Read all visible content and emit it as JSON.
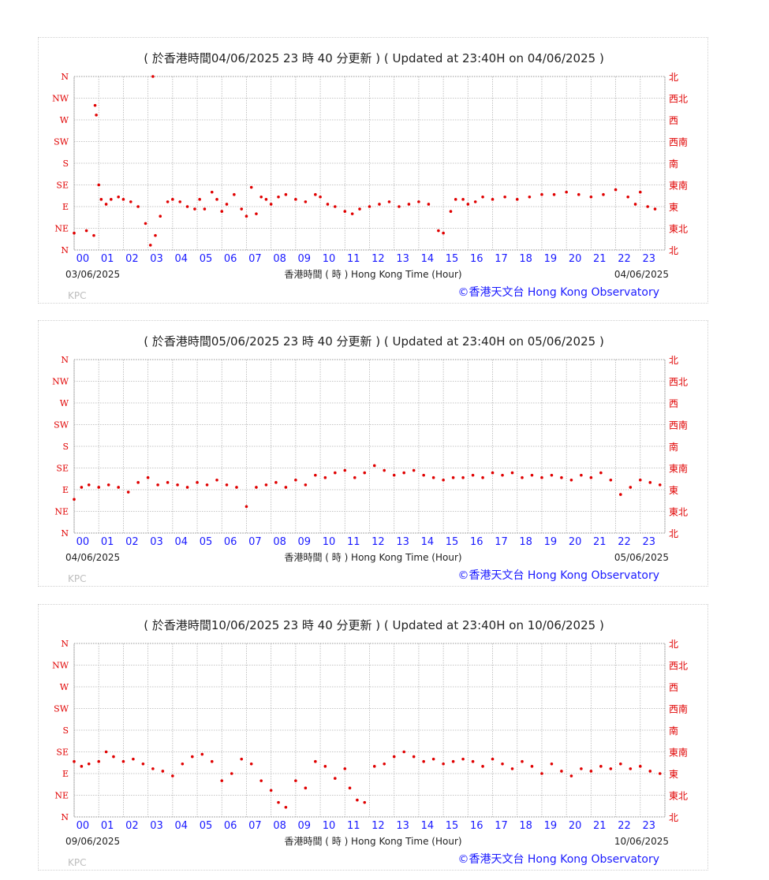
{
  "colors": {
    "points": "#e00000",
    "left_labels": "#e00000",
    "right_labels": "#e00000",
    "hour_labels": "#1a1aff",
    "copyright": "#1a1aff",
    "grid": "#b3b3b3"
  },
  "common": {
    "y_labels_en": [
      "N",
      "NW",
      "W",
      "SW",
      "S",
      "SE",
      "E",
      "NE",
      "N"
    ],
    "y_labels_zh": [
      "北",
      "西北",
      "西",
      "西南",
      "南",
      "東南",
      "東",
      "東北",
      "北"
    ],
    "hour_labels": [
      "00",
      "01",
      "02",
      "03",
      "04",
      "05",
      "06",
      "07",
      "08",
      "09",
      "10",
      "11",
      "12",
      "13",
      "14",
      "15",
      "16",
      "17",
      "18",
      "19",
      "20",
      "21",
      "22",
      "23"
    ],
    "x_title": "香港時間 ( 時 ) Hong Kong Time (Hour)",
    "copyright": "©香港天文台 Hong Kong Observatory",
    "station": "KPC"
  },
  "panels": [
    {
      "title": "( 於香港時間04/06/2025 23 時 40 分更新 ) ( Updated at 23:40H on 04/06/2025 )",
      "start_date": "03/06/2025",
      "end_date": "04/06/2025"
    },
    {
      "title": "( 於香港時間05/06/2025 23 時 40 分更新 ) ( Updated at 23:40H on 05/06/2025 )",
      "start_date": "04/06/2025",
      "end_date": "05/06/2025"
    },
    {
      "title": "( 於香港時間10/06/2025 23 時 40 分更新 ) ( Updated at 23:40H on 10/06/2025 )",
      "start_date": "09/06/2025",
      "end_date": "10/06/2025"
    }
  ],
  "chart_data": [
    {
      "type": "scatter",
      "title": "( 於香港時間04/06/2025 23 時 40 分更新 ) ( Updated at 23:40H on 04/06/2025 )",
      "xlabel": "香港時間 ( 時 ) Hong Kong Time (Hour)",
      "xlim": [
        0,
        24
      ],
      "ylim": [
        0,
        360
      ],
      "series": [
        {
          "x": [
            0,
            0.5,
            0.8,
            0.85,
            0.9,
            1.0,
            1.1,
            1.3,
            1.5,
            1.8,
            2.0,
            2.3,
            2.6,
            2.9,
            3.1,
            3.2,
            3.3,
            3.5,
            3.8,
            4.0,
            4.3,
            4.6,
            4.9,
            5.1,
            5.3,
            5.6,
            5.8,
            6.0,
            6.2,
            6.5,
            6.8,
            7.0,
            7.2,
            7.4,
            7.6,
            7.8,
            8.0,
            8.3,
            8.6,
            9.0,
            9.4,
            9.8,
            10.0,
            10.3,
            10.6,
            11.0,
            11.3,
            11.6,
            12.0,
            12.4,
            12.8,
            13.2,
            13.6,
            14.0,
            14.4,
            14.8,
            15.0,
            15.3,
            15.5,
            15.8,
            16.0,
            16.3,
            16.6,
            17.0,
            17.5,
            18.0,
            18.5,
            19.0,
            19.5,
            20.0,
            20.5,
            21.0,
            21.5,
            22.0,
            22.5,
            22.8,
            23.0,
            23.3,
            23.6
          ],
          "y": [
            35,
            40,
            30,
            300,
            280,
            135,
            105,
            95,
            105,
            110,
            105,
            100,
            90,
            55,
            10,
            360,
            30,
            70,
            100,
            105,
            100,
            90,
            85,
            105,
            85,
            120,
            105,
            80,
            95,
            115,
            85,
            70,
            130,
            75,
            110,
            105,
            95,
            110,
            115,
            105,
            100,
            115,
            110,
            95,
            90,
            80,
            75,
            85,
            90,
            95,
            100,
            90,
            95,
            100,
            95,
            40,
            35,
            80,
            105,
            105,
            95,
            100,
            110,
            105,
            110,
            105,
            110,
            115,
            115,
            120,
            115,
            110,
            115,
            125,
            110,
            95,
            120,
            90,
            85
          ]
        }
      ]
    },
    {
      "type": "scatter",
      "title": "( 於香港時間05/06/2025 23 時 40 分更新 ) ( Updated at 23:40H on 05/06/2025 )",
      "xlabel": "香港時間 ( 時 ) Hong Kong Time (Hour)",
      "xlim": [
        0,
        24
      ],
      "ylim": [
        0,
        360
      ],
      "series": [
        {
          "x": [
            0,
            0.3,
            0.6,
            1.0,
            1.4,
            1.8,
            2.2,
            2.6,
            3.0,
            3.4,
            3.8,
            4.2,
            4.6,
            5.0,
            5.4,
            5.8,
            6.2,
            6.6,
            7.0,
            7.4,
            7.8,
            8.2,
            8.6,
            9.0,
            9.4,
            9.8,
            10.2,
            10.6,
            11.0,
            11.4,
            11.8,
            12.2,
            12.6,
            13.0,
            13.4,
            13.8,
            14.2,
            14.6,
            15.0,
            15.4,
            15.8,
            16.2,
            16.6,
            17.0,
            17.4,
            17.8,
            18.2,
            18.6,
            19.0,
            19.4,
            19.8,
            20.2,
            20.6,
            21.0,
            21.4,
            21.8,
            22.2,
            22.6,
            23.0,
            23.4,
            23.8
          ],
          "y": [
            70,
            95,
            100,
            95,
            100,
            95,
            85,
            105,
            115,
            100,
            105,
            100,
            95,
            105,
            100,
            110,
            100,
            95,
            55,
            95,
            100,
            105,
            95,
            110,
            100,
            120,
            115,
            125,
            130,
            115,
            125,
            140,
            130,
            120,
            125,
            130,
            120,
            115,
            110,
            115,
            115,
            120,
            115,
            125,
            120,
            125,
            115,
            120,
            115,
            120,
            115,
            110,
            120,
            115,
            125,
            110,
            80,
            95,
            110,
            105,
            100
          ]
        }
      ]
    },
    {
      "type": "scatter",
      "title": "( 於香港時間10/06/2025 23 時 40 分更新 ) ( Updated at 23:40H on 10/06/2025 )",
      "xlabel": "香港時間 ( 時 ) Hong Kong Time (Hour)",
      "xlim": [
        0,
        24
      ],
      "ylim": [
        0,
        360
      ],
      "series": [
        {
          "x": [
            0,
            0.3,
            0.6,
            1.0,
            1.3,
            1.6,
            2.0,
            2.4,
            2.8,
            3.2,
            3.6,
            4.0,
            4.4,
            4.8,
            5.2,
            5.6,
            6.0,
            6.4,
            6.8,
            7.2,
            7.6,
            8.0,
            8.3,
            8.6,
            9.0,
            9.4,
            9.8,
            10.2,
            10.6,
            11.0,
            11.2,
            11.5,
            11.8,
            12.2,
            12.6,
            13.0,
            13.4,
            13.8,
            14.2,
            14.6,
            15.0,
            15.4,
            15.8,
            16.2,
            16.6,
            17.0,
            17.4,
            17.8,
            18.2,
            18.6,
            19.0,
            19.4,
            19.8,
            20.2,
            20.6,
            21.0,
            21.4,
            21.8,
            22.2,
            22.6,
            23.0,
            23.4,
            23.8
          ],
          "y": [
            115,
            105,
            110,
            115,
            135,
            125,
            115,
            120,
            110,
            100,
            95,
            85,
            110,
            125,
            130,
            115,
            75,
            90,
            120,
            110,
            75,
            55,
            30,
            20,
            75,
            60,
            115,
            105,
            80,
            100,
            60,
            35,
            30,
            105,
            110,
            125,
            135,
            125,
            115,
            120,
            110,
            115,
            120,
            115,
            105,
            120,
            110,
            100,
            115,
            105,
            90,
            110,
            95,
            85,
            100,
            95,
            105,
            100,
            110,
            100,
            105,
            95,
            90
          ]
        }
      ]
    }
  ]
}
